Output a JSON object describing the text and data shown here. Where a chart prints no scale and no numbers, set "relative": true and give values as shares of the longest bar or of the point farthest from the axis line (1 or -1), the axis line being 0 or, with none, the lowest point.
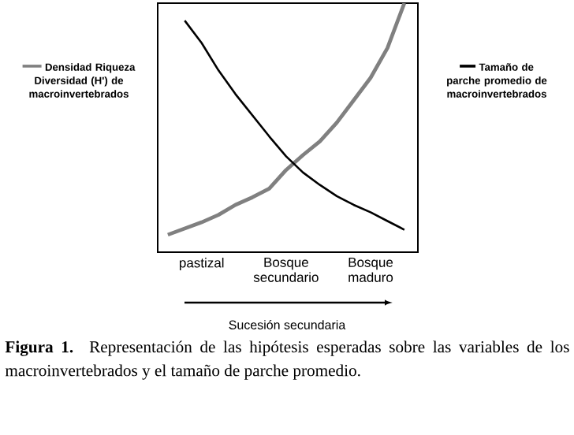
{
  "chart_data": {
    "type": "line",
    "relative": true,
    "legend": "top",
    "categories": [
      null,
      null,
      "pastizal",
      null,
      null,
      null,
      null,
      "Bosque secundario",
      null,
      null,
      null,
      null,
      "Bosque maduro",
      null,
      null
    ],
    "xlabel": "Sucesión secundaria",
    "annotations": [
      "**Figura 1.** Representación de las hipótesis esperadas sobre las variables de los macroinvertebrados y el tamaño de parche promedio."
    ],
    "series": [
      {
        "name": "Densidad Riqueza Diversidad (H') de macroinvertebrados",
        "color": "#808080",
        "values": [
          0.07,
          0.095,
          0.12,
          0.15,
          0.19,
          0.22,
          0.255,
          0.33,
          0.39,
          0.445,
          0.52,
          0.61,
          0.7,
          0.82,
          1
        ]
      },
      {
        "name": "Tamaño de parche promedio de macroinvertebrados",
        "color": "#000000",
        "values": [
          null,
          0.93,
          0.84,
          0.73,
          0.635,
          0.55,
          0.465,
          0.385,
          0.32,
          0.27,
          0.225,
          0.19,
          0.16,
          0.125,
          0.09
        ]
      }
    ]
  }
}
